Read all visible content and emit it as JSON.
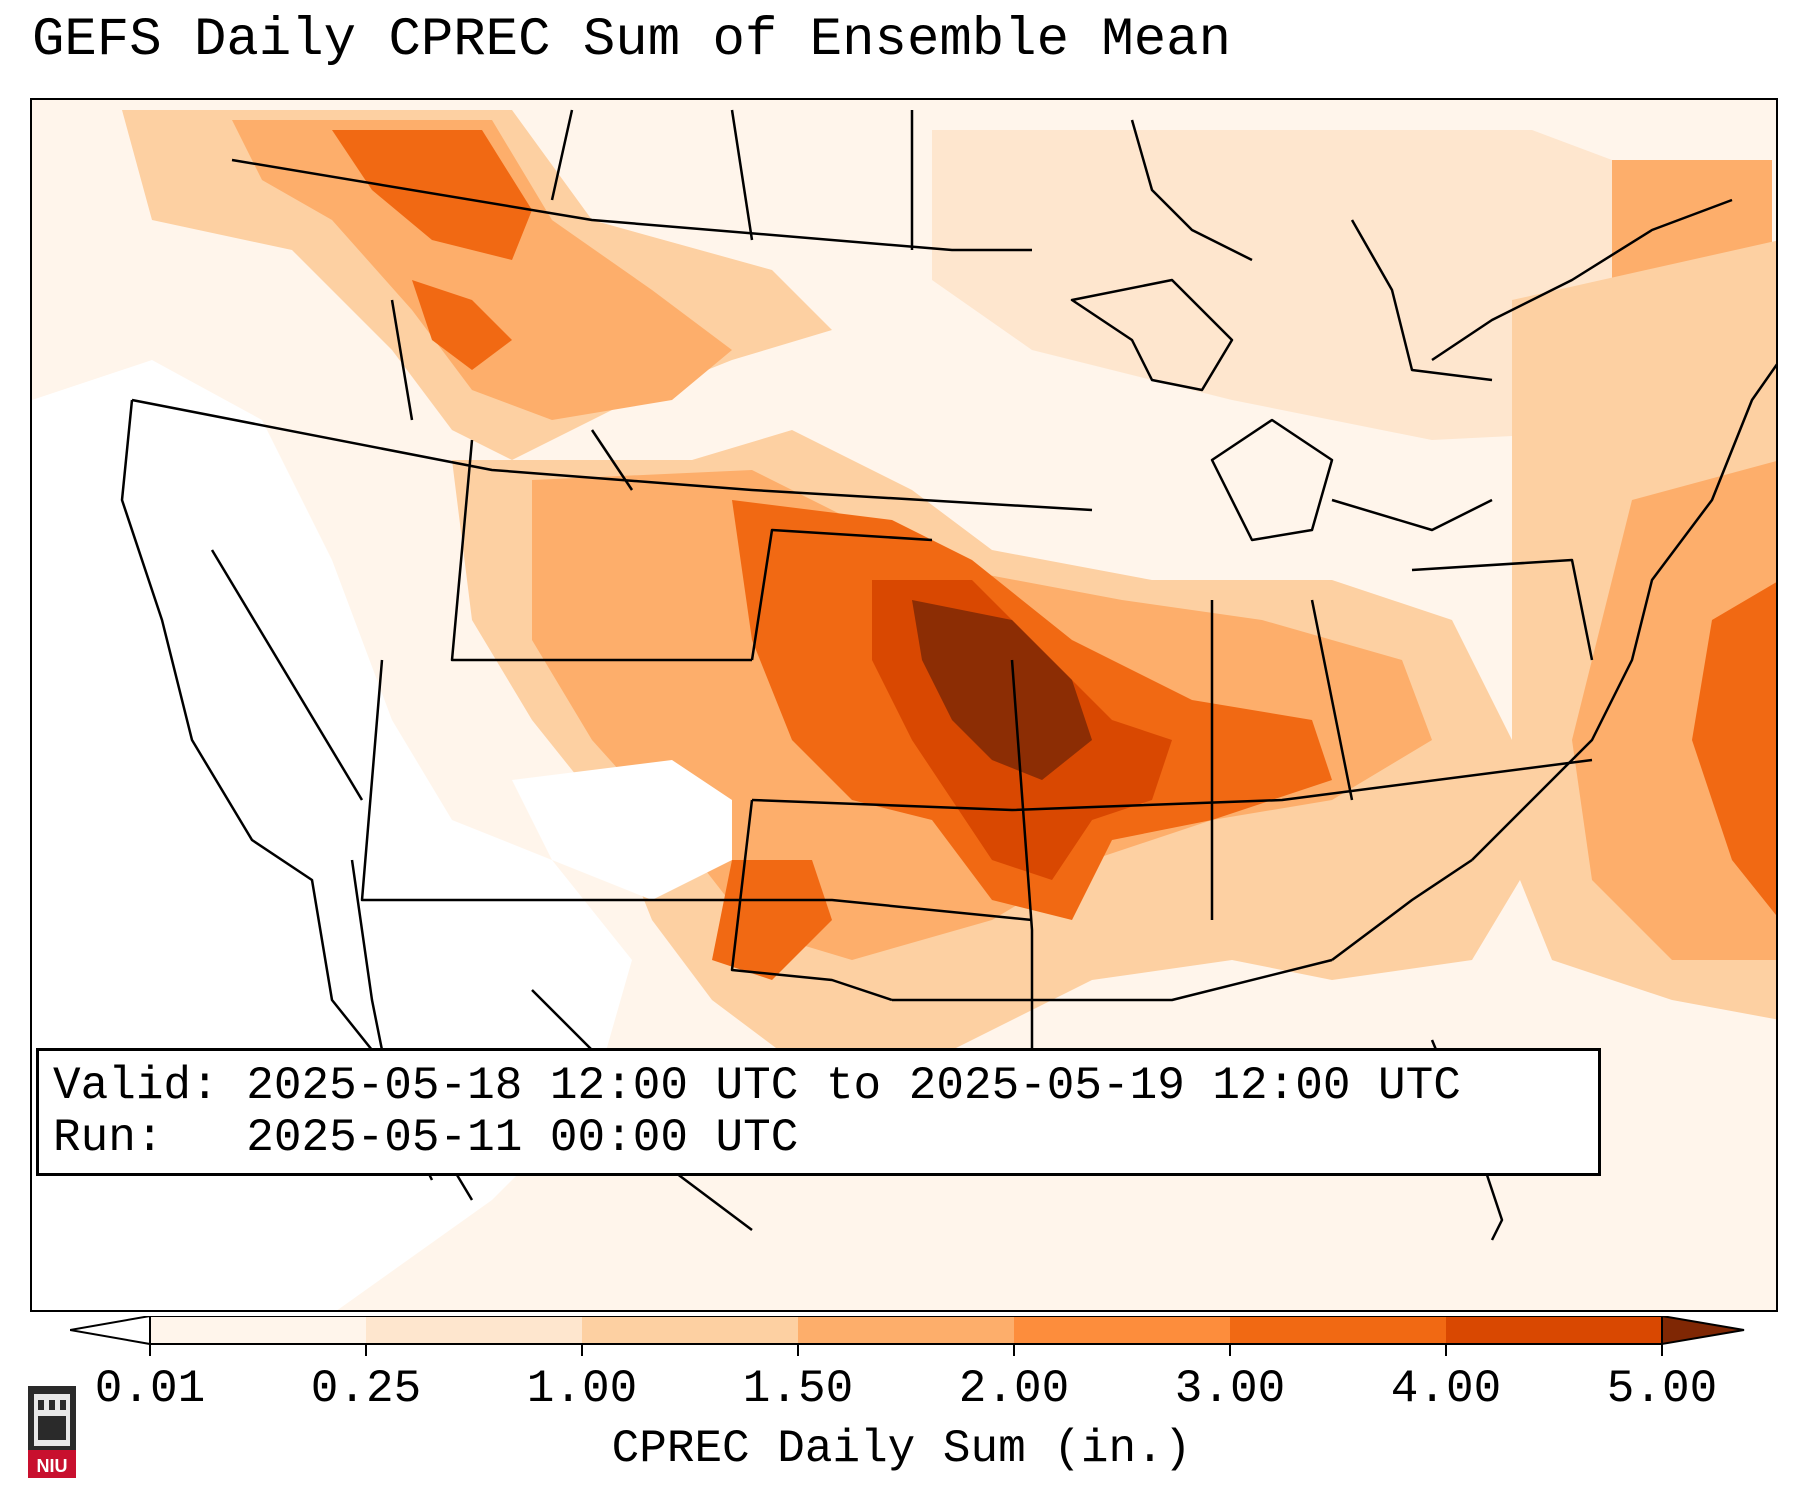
{
  "title": "GEFS Daily CPREC Sum of Ensemble Mean",
  "info": {
    "valid_label": "Valid:",
    "valid_value": "2025-05-18 12:00 UTC to 2025-05-19 12:00 UTC",
    "run_label": "Run:",
    "run_value": "2025-05-11 00:00 UTC"
  },
  "colorbar": {
    "label": "CPREC Daily Sum (in.)",
    "ticks": [
      "0.01",
      "0.25",
      "1.00",
      "1.50",
      "2.00",
      "3.00",
      "4.00",
      "5.00"
    ],
    "colors": [
      "#fff5eb",
      "#fee6ce",
      "#fdd0a2",
      "#fdae6b",
      "#fd8d3c",
      "#f16913",
      "#d94801",
      "#8c2d04"
    ],
    "under_color": "#ffffff",
    "over_color": "#7f2704",
    "extend": "both"
  },
  "logo": {
    "text": "NIU",
    "color": "#c8102e"
  }
}
